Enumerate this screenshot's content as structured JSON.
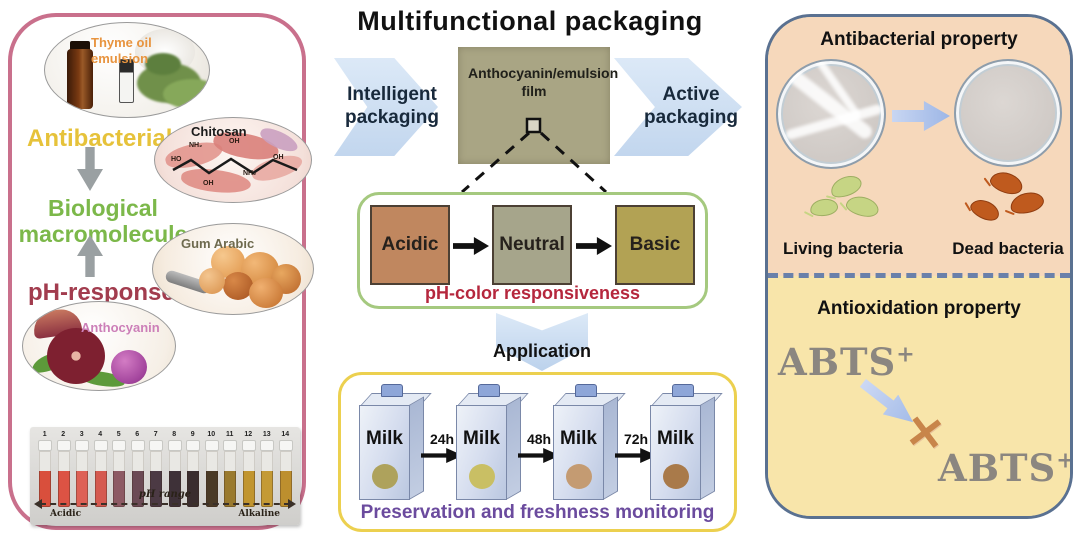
{
  "title": "Multifunctional packaging",
  "left_panel": {
    "thyme": {
      "label": "Thyme oil emulsion"
    },
    "antibacterial_label": "Antibacterial",
    "chitosan": {
      "label": "Chitosan",
      "chem_labels": [
        "NH₂",
        "OH",
        "HO",
        "OH",
        "NH₂",
        "OH"
      ]
    },
    "biological_label": "Biological macromolecule",
    "ph_response_label": "pH-response",
    "gum_arabic": {
      "label": "Gum Arabic"
    },
    "anthocyanin": {
      "label": "Anthocyanin"
    },
    "vial_photo": {
      "numbers": [
        "1",
        "2",
        "3",
        "4",
        "5",
        "6",
        "7",
        "8",
        "9",
        "10",
        "11",
        "12",
        "13",
        "14"
      ],
      "colors": [
        "#d94f3c",
        "#dc5344",
        "#de6156",
        "#d55a50",
        "#8d5a64",
        "#6b4a55",
        "#4c3a44",
        "#3e3138",
        "#3a2d2e",
        "#4a3a26",
        "#9a7a2e",
        "#c1952f",
        "#c49a35",
        "#bd8f2e"
      ],
      "ph_range_label": "pH range",
      "acidic_label": "Acidic",
      "alkaline_label": "Alkaline"
    }
  },
  "center": {
    "film_label": "Anthocyanin/emulsion film",
    "left_arrow_label": "Intelligent packaging",
    "right_arrow_label": "Active packaging",
    "ph_box": {
      "states": [
        {
          "label": "Acidic",
          "color": "#c0875f"
        },
        {
          "label": "Neutral",
          "color": "#a6a58b"
        },
        {
          "label": "Basic",
          "color": "#b2a254"
        }
      ],
      "caption": "pH-color responsiveness"
    },
    "application_label": "Application",
    "milk_box": {
      "cartons": [
        {
          "label": "Milk",
          "dot_color": "#aea25c"
        },
        {
          "label": "Milk",
          "dot_color": "#c9bf64"
        },
        {
          "label": "Milk",
          "dot_color": "#c49b72"
        },
        {
          "label": "Milk",
          "dot_color": "#a97a4a"
        }
      ],
      "arrow_labels": [
        "24h",
        "48h",
        "72h"
      ],
      "caption": "Preservation and freshness monitoring"
    }
  },
  "right_panel": {
    "antibacterial": {
      "title": "Antibacterial property",
      "living_label": "Living bacteria",
      "dead_label": "Dead bacteria"
    },
    "antioxidation": {
      "title": "Antioxidation property",
      "abts_text": "ABTS",
      "abts_sup": "+"
    }
  },
  "colors": {
    "left_panel_border": "#c9708c",
    "right_panel_border": "#5a7191",
    "antibacterial_bg": "#f6d8bb",
    "antioxidation_bg": "#f8e5aa",
    "film_bg": "#a9a584",
    "ph_box_border": "#a5c97f",
    "milk_box_border": "#ecd04f",
    "block_arrow": "#cfe0f2",
    "caption_purple": "#6b4b9e",
    "caption_red": "#b5273d",
    "green_text": "#7cb84a",
    "yellow_text": "#e6c23a",
    "maroon_text": "#a23c4e",
    "orange_text": "#e8943f"
  }
}
